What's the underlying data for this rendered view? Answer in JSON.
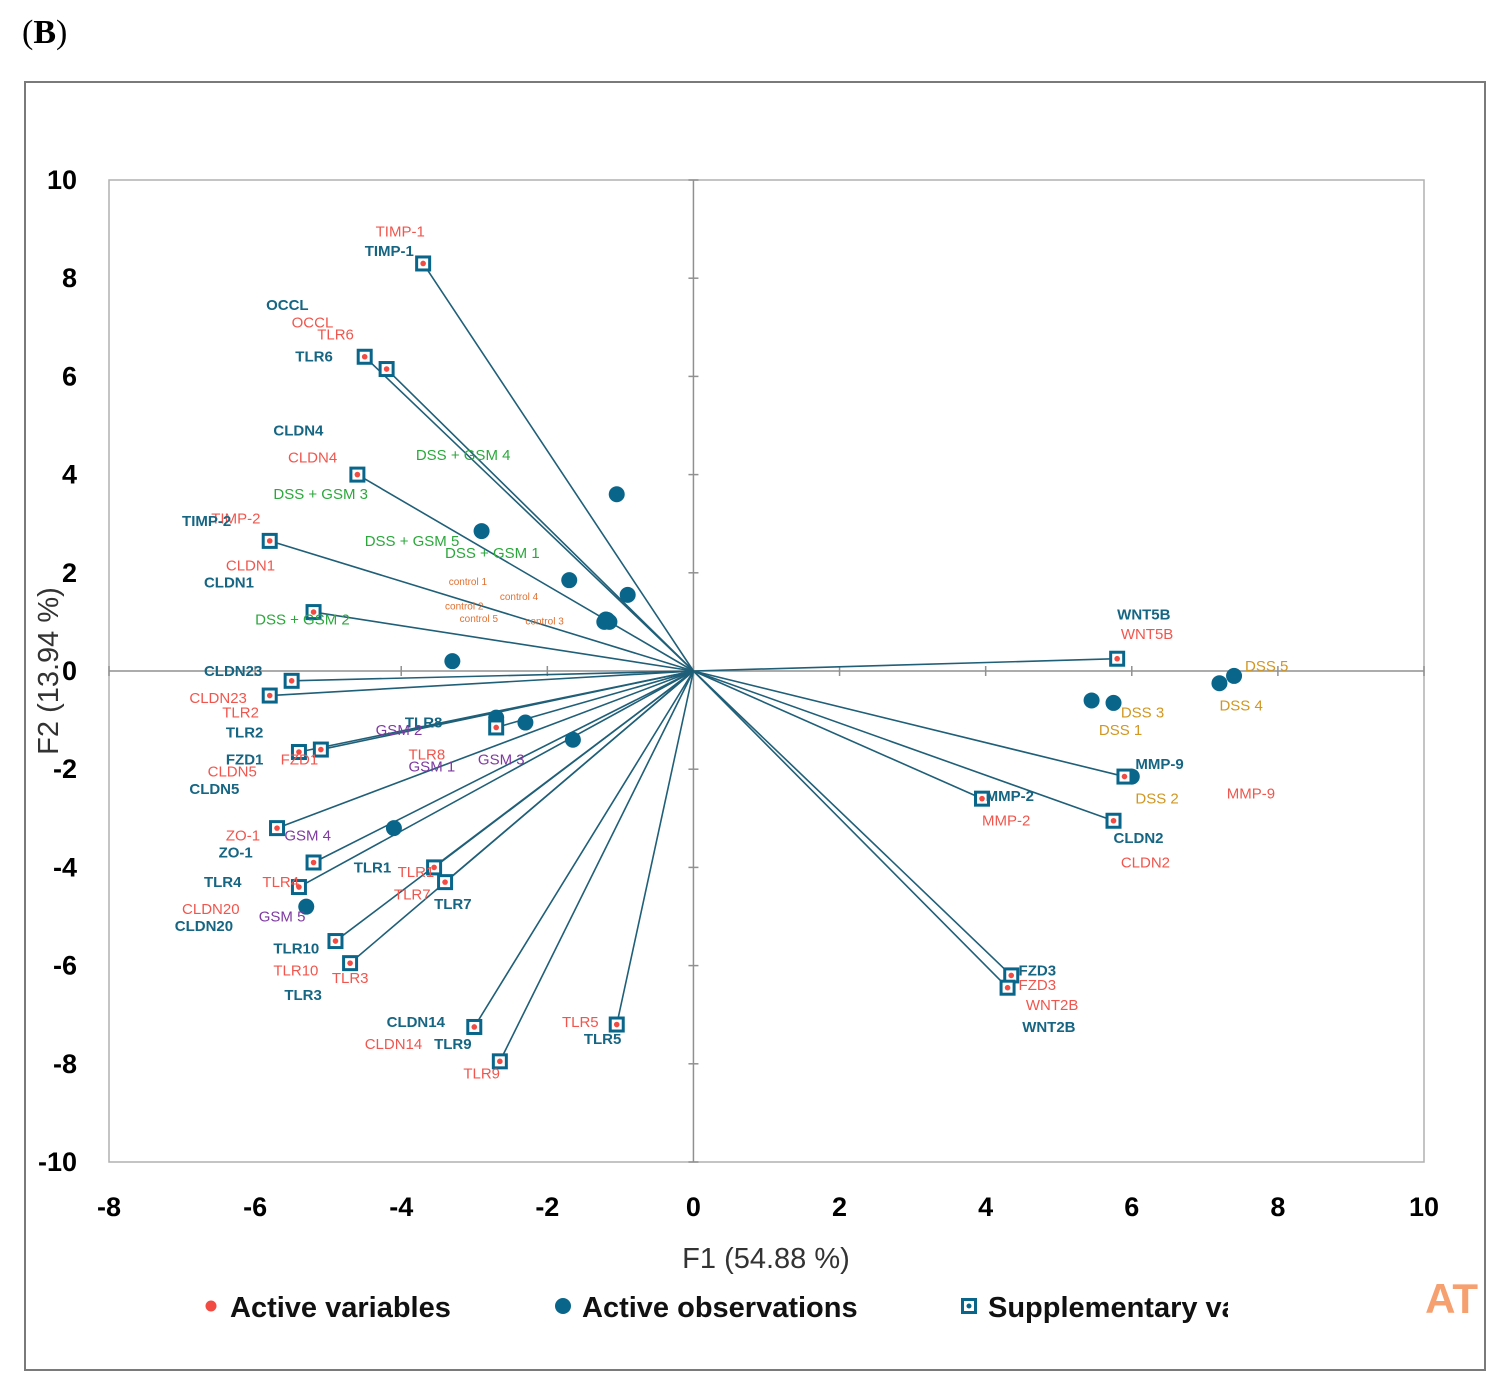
{
  "panel_label": "B",
  "colors": {
    "axis": "#909090",
    "vector": "#1f5f78",
    "active_variable": "#f24b43",
    "observation": "#09668a",
    "supplementary": "#09668a",
    "label_active": "#f0564d",
    "label_supplementary": "#156583",
    "label_dss_gsm": "#2ba83c",
    "label_dss": "#d19722",
    "label_gsm": "#7f3aa1",
    "label_control": "#e07030",
    "watermark": "#f6a070"
  },
  "watermark_text": "AT",
  "chart_data": {
    "type": "scatter",
    "xlabel": "F1 (54.88 %)",
    "ylabel": "F2 (13.94 %)",
    "xlim": [
      -8,
      10
    ],
    "ylim": [
      -10,
      10
    ],
    "xticks": [
      "-8",
      "-6",
      "-4",
      "-2",
      "0",
      "2",
      "4",
      "6",
      "8",
      "10"
    ],
    "yticks": [
      "-10",
      "-8",
      "-6",
      "-4",
      "-2",
      "0",
      "2",
      "4",
      "6",
      "8",
      "10"
    ],
    "legend": {
      "position": "bottom",
      "entries": [
        {
          "name": "Active variables",
          "marker": "dot"
        },
        {
          "name": "Active observations",
          "marker": "circle"
        },
        {
          "name": "Supplementary variables",
          "marker": "square"
        }
      ]
    },
    "variables": [
      {
        "name": "TIMP-1",
        "x": -3.7,
        "y": 8.3
      },
      {
        "name": "TLR6",
        "x": -4.5,
        "y": 6.4
      },
      {
        "name": "OCCL",
        "x": -4.2,
        "y": 6.15
      },
      {
        "name": "CLDN4",
        "x": -4.6,
        "y": 4.0
      },
      {
        "name": "TIMP-2",
        "x": -5.8,
        "y": 2.65
      },
      {
        "name": "CLDN1",
        "x": -5.2,
        "y": 1.2
      },
      {
        "name": "CLDN23",
        "x": -5.5,
        "y": -0.2
      },
      {
        "name": "TLR2",
        "x": -5.8,
        "y": -0.5
      },
      {
        "name": "TLR8",
        "x": -2.7,
        "y": -1.15
      },
      {
        "name": "FZD1",
        "x": -5.1,
        "y": -1.6
      },
      {
        "name": "CLDN5",
        "x": -5.4,
        "y": -1.65
      },
      {
        "name": "ZO-1",
        "x": -5.7,
        "y": -3.2
      },
      {
        "name": "TLR4",
        "x": -5.4,
        "y": -4.4
      },
      {
        "name": "CLDN20",
        "x": -5.2,
        "y": -3.9
      },
      {
        "name": "TLR1",
        "x": -3.55,
        "y": -4.0
      },
      {
        "name": "TLR7",
        "x": -3.4,
        "y": -4.3
      },
      {
        "name": "TLR10",
        "x": -4.9,
        "y": -5.5
      },
      {
        "name": "TLR3",
        "x": -4.7,
        "y": -5.95
      },
      {
        "name": "CLDN14",
        "x": -3.0,
        "y": -7.25
      },
      {
        "name": "TLR9",
        "x": -2.65,
        "y": -7.95
      },
      {
        "name": "TLR5",
        "x": -1.05,
        "y": -7.2
      },
      {
        "name": "WNT5B",
        "x": 5.8,
        "y": 0.25
      },
      {
        "name": "MMP-9",
        "x": 5.9,
        "y": -2.15
      },
      {
        "name": "MMP-2",
        "x": 3.95,
        "y": -2.6
      },
      {
        "name": "CLDN2",
        "x": 5.75,
        "y": -3.05
      },
      {
        "name": "FZD3",
        "x": 4.35,
        "y": -6.2
      },
      {
        "name": "WNT2B",
        "x": 4.3,
        "y": -6.45
      }
    ],
    "observations": [
      {
        "name": "DSS + GSM 4",
        "x": -1.05,
        "y": 3.6
      },
      {
        "name": "DSS + GSM 3",
        "x": -2.9,
        "y": 2.85
      },
      {
        "name": "DSS + GSM 5",
        "x": -1.7,
        "y": 1.85
      },
      {
        "name": "DSS + GSM 1",
        "x": -0.9,
        "y": 1.55
      },
      {
        "name": "control 1",
        "x": -1.2,
        "y": 1.05
      },
      {
        "name": "control 2",
        "x": -1.15,
        "y": 1.0
      },
      {
        "name": "control 3",
        "x": -1.2,
        "y": 1.02
      },
      {
        "name": "control 4",
        "x": -1.18,
        "y": 1.04
      },
      {
        "name": "control 5",
        "x": -1.22,
        "y": 1.0
      },
      {
        "name": "DSS + GSM 2",
        "x": -3.3,
        "y": 0.2
      },
      {
        "name": "GSM 2",
        "x": -2.7,
        "y": -0.95
      },
      {
        "name": "GSM 1",
        "x": -2.3,
        "y": -1.05
      },
      {
        "name": "GSM 3",
        "x": -1.65,
        "y": -1.4
      },
      {
        "name": "GSM 4",
        "x": -4.1,
        "y": -3.2
      },
      {
        "name": "GSM 5",
        "x": -5.3,
        "y": -4.8
      },
      {
        "name": "DSS 5",
        "x": 7.4,
        "y": -0.1
      },
      {
        "name": "DSS 4",
        "x": 7.2,
        "y": -0.25
      },
      {
        "name": "DSS 3",
        "x": 5.45,
        "y": -0.6
      },
      {
        "name": "DSS 1",
        "x": 5.75,
        "y": -0.65
      },
      {
        "name": "DSS 2",
        "x": 6.0,
        "y": -2.15
      }
    ],
    "labels": [
      {
        "text": "TIMP-1",
        "x": -4.35,
        "y": 8.85,
        "style": "active"
      },
      {
        "text": "TIMP-1",
        "x": -4.5,
        "y": 8.45,
        "style": "supp"
      },
      {
        "text": "OCCL",
        "x": -5.85,
        "y": 7.35,
        "style": "supp"
      },
      {
        "text": "OCCL",
        "x": -5.5,
        "y": 7.0,
        "style": "active"
      },
      {
        "text": "TLR6",
        "x": -5.15,
        "y": 6.75,
        "style": "active"
      },
      {
        "text": "TLR6",
        "x": -5.45,
        "y": 6.3,
        "style": "supp"
      },
      {
        "text": "CLDN4",
        "x": -5.75,
        "y": 4.8,
        "style": "supp"
      },
      {
        "text": "CLDN4",
        "x": -5.55,
        "y": 4.25,
        "style": "active"
      },
      {
        "text": "DSS + GSM 4",
        "x": -3.8,
        "y": 4.3,
        "style": "dssgsm"
      },
      {
        "text": "DSS + GSM 3",
        "x": -5.75,
        "y": 3.5,
        "style": "dssgsm"
      },
      {
        "text": "TIMP-2",
        "x": -6.6,
        "y": 3.0,
        "style": "active"
      },
      {
        "text": "TIMP-2",
        "x": -7.0,
        "y": 2.95,
        "style": "supp"
      },
      {
        "text": "DSS + GSM 5",
        "x": -4.5,
        "y": 2.55,
        "style": "dssgsm"
      },
      {
        "text": "DSS + GSM 1",
        "x": -3.4,
        "y": 2.3,
        "style": "dssgsm"
      },
      {
        "text": "CLDN1",
        "x": -6.4,
        "y": 2.05,
        "style": "active"
      },
      {
        "text": "CLDN1",
        "x": -6.7,
        "y": 1.7,
        "style": "supp"
      },
      {
        "text": "control 1",
        "x": -3.35,
        "y": 1.75,
        "style": "control"
      },
      {
        "text": "control 4",
        "x": -2.65,
        "y": 1.45,
        "style": "control"
      },
      {
        "text": "control 2",
        "x": -3.4,
        "y": 1.25,
        "style": "control"
      },
      {
        "text": "control 5",
        "x": -3.2,
        "y": 1.0,
        "style": "control"
      },
      {
        "text": "control 3",
        "x": -2.3,
        "y": 0.95,
        "style": "control"
      },
      {
        "text": "DSS + GSM 2",
        "x": -6.0,
        "y": 0.95,
        "style": "dssgsm"
      },
      {
        "text": "CLDN23",
        "x": -6.7,
        "y": -0.1,
        "style": "supp"
      },
      {
        "text": "CLDN23",
        "x": -6.9,
        "y": -0.65,
        "style": "active"
      },
      {
        "text": "TLR2",
        "x": -6.45,
        "y": -0.95,
        "style": "active"
      },
      {
        "text": "TLR2",
        "x": -6.4,
        "y": -1.35,
        "style": "supp"
      },
      {
        "text": "TLR8",
        "x": -3.95,
        "y": -1.15,
        "style": "supp"
      },
      {
        "text": "GSM 2",
        "x": -4.35,
        "y": -1.3,
        "style": "gsm"
      },
      {
        "text": "TLR8",
        "x": -3.9,
        "y": -1.8,
        "style": "active"
      },
      {
        "text": "GSM 3",
        "x": -2.95,
        "y": -1.9,
        "style": "gsm"
      },
      {
        "text": "FZD1",
        "x": -6.4,
        "y": -1.9,
        "style": "supp"
      },
      {
        "text": "FZD1",
        "x": -5.65,
        "y": -1.9,
        "style": "active"
      },
      {
        "text": "GSM 1",
        "x": -3.9,
        "y": -2.05,
        "style": "gsm"
      },
      {
        "text": "CLDN5",
        "x": -6.65,
        "y": -2.15,
        "style": "active"
      },
      {
        "text": "CLDN5",
        "x": -6.9,
        "y": -2.5,
        "style": "supp"
      },
      {
        "text": "ZO-1",
        "x": -6.4,
        "y": -3.45,
        "style": "active"
      },
      {
        "text": "GSM 4",
        "x": -5.6,
        "y": -3.45,
        "style": "gsm"
      },
      {
        "text": "ZO-1",
        "x": -6.5,
        "y": -3.8,
        "style": "supp"
      },
      {
        "text": "TLR1",
        "x": -4.65,
        "y": -4.1,
        "style": "supp"
      },
      {
        "text": "TLR1",
        "x": -4.05,
        "y": -4.2,
        "style": "active"
      },
      {
        "text": "TLR4",
        "x": -6.7,
        "y": -4.4,
        "style": "supp"
      },
      {
        "text": "TLR4",
        "x": -5.9,
        "y": -4.4,
        "style": "active"
      },
      {
        "text": "TLR7",
        "x": -4.1,
        "y": -4.65,
        "style": "active"
      },
      {
        "text": "TLR7",
        "x": -3.55,
        "y": -4.85,
        "style": "supp"
      },
      {
        "text": "CLDN20",
        "x": -7.0,
        "y": -4.95,
        "style": "active"
      },
      {
        "text": "GSM 5",
        "x": -5.95,
        "y": -5.1,
        "style": "gsm"
      },
      {
        "text": "CLDN20",
        "x": -7.1,
        "y": -5.3,
        "style": "supp"
      },
      {
        "text": "TLR10",
        "x": -5.75,
        "y": -5.75,
        "style": "supp"
      },
      {
        "text": "TLR10",
        "x": -5.75,
        "y": -6.2,
        "style": "active"
      },
      {
        "text": "TLR3",
        "x": -4.95,
        "y": -6.35,
        "style": "active"
      },
      {
        "text": "TLR3",
        "x": -5.6,
        "y": -6.7,
        "style": "supp"
      },
      {
        "text": "CLDN14",
        "x": -4.2,
        "y": -7.25,
        "style": "supp"
      },
      {
        "text": "TLR5",
        "x": -1.8,
        "y": -7.25,
        "style": "active"
      },
      {
        "text": "TLR5",
        "x": -1.5,
        "y": -7.6,
        "style": "supp"
      },
      {
        "text": "CLDN14",
        "x": -4.5,
        "y": -7.7,
        "style": "active"
      },
      {
        "text": "TLR9",
        "x": -3.55,
        "y": -7.7,
        "style": "supp"
      },
      {
        "text": "TLR9",
        "x": -3.15,
        "y": -8.3,
        "style": "active"
      },
      {
        "text": "WNT5B",
        "x": 5.8,
        "y": 1.05,
        "style": "supp"
      },
      {
        "text": "WNT5B",
        "x": 5.85,
        "y": 0.65,
        "style": "active"
      },
      {
        "text": "DSS 5",
        "x": 7.55,
        "y": 0.0,
        "style": "dss"
      },
      {
        "text": "DSS 4",
        "x": 7.2,
        "y": -0.8,
        "style": "dss"
      },
      {
        "text": "DSS 3",
        "x": 5.85,
        "y": -0.95,
        "style": "dss"
      },
      {
        "text": "DSS 1",
        "x": 5.55,
        "y": -1.3,
        "style": "dss"
      },
      {
        "text": "MMP-9",
        "x": 6.05,
        "y": -2.0,
        "style": "supp"
      },
      {
        "text": "MMP-9",
        "x": 7.3,
        "y": -2.6,
        "style": "active"
      },
      {
        "text": "DSS 2",
        "x": 6.05,
        "y": -2.7,
        "style": "dss"
      },
      {
        "text": "MMP-2",
        "x": 4.0,
        "y": -2.65,
        "style": "supp"
      },
      {
        "text": "MMP-2",
        "x": 3.95,
        "y": -3.15,
        "style": "active"
      },
      {
        "text": "CLDN2",
        "x": 5.75,
        "y": -3.5,
        "style": "supp"
      },
      {
        "text": "CLDN2",
        "x": 5.85,
        "y": -4.0,
        "style": "active"
      },
      {
        "text": "FZD3",
        "x": 4.45,
        "y": -6.2,
        "style": "supp"
      },
      {
        "text": "FZD3",
        "x": 4.45,
        "y": -6.5,
        "style": "active"
      },
      {
        "text": "WNT2B",
        "x": 4.55,
        "y": -6.9,
        "style": "active"
      },
      {
        "text": "WNT2B",
        "x": 4.5,
        "y": -7.35,
        "style": "supp"
      }
    ]
  }
}
